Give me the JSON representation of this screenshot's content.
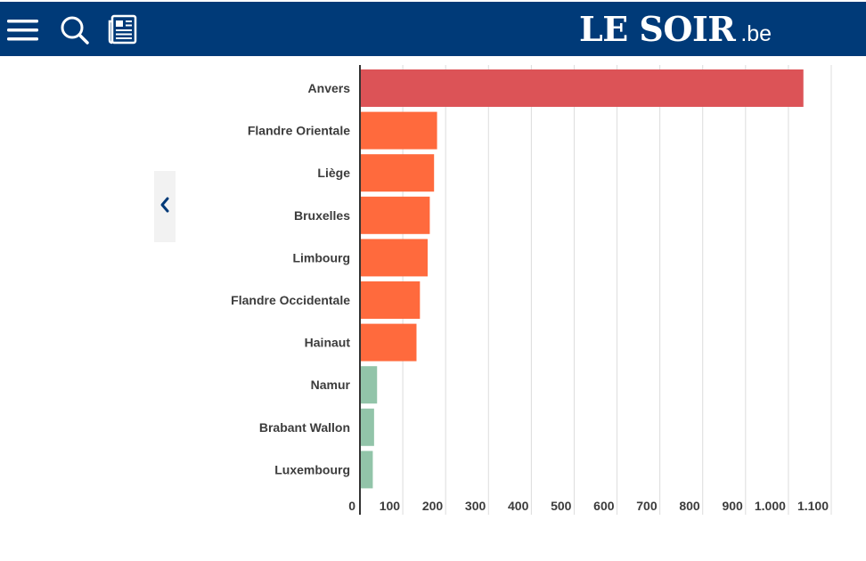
{
  "header": {
    "logo_main": "LE SOIR",
    "logo_tld": ".be",
    "background": "#003a78",
    "icons": [
      "menu-icon",
      "search-icon",
      "newspaper-icon"
    ]
  },
  "carousel": {
    "prev_icon": "chevron-left-icon"
  },
  "chart_data": {
    "type": "bar",
    "orientation": "horizontal",
    "categories": [
      "Anvers",
      "Flandre Orientale",
      "Liège",
      "Bruxelles",
      "Limbourg",
      "Flandre Occidentale",
      "Hainaut",
      "Namur",
      "Brabant Wallon",
      "Luxembourg"
    ],
    "values": [
      1035,
      180,
      173,
      163,
      158,
      140,
      132,
      40,
      33,
      30
    ],
    "colors": [
      "#dc5357",
      "#ff6a3d",
      "#ff6a3d",
      "#ff6a3d",
      "#ff6a3d",
      "#ff6a3d",
      "#ff6a3d",
      "#92c4a9",
      "#92c4a9",
      "#92c4a9"
    ],
    "xlim": [
      0,
      1100
    ],
    "x_ticks": [
      0,
      100,
      200,
      300,
      400,
      500,
      600,
      700,
      800,
      900,
      1000,
      1100
    ],
    "x_tick_labels": [
      "0",
      "100",
      "200",
      "300",
      "400",
      "500",
      "600",
      "700",
      "800",
      "900",
      "1.000",
      "1.100"
    ],
    "grid": true,
    "title": "",
    "xlabel": "",
    "ylabel": ""
  }
}
